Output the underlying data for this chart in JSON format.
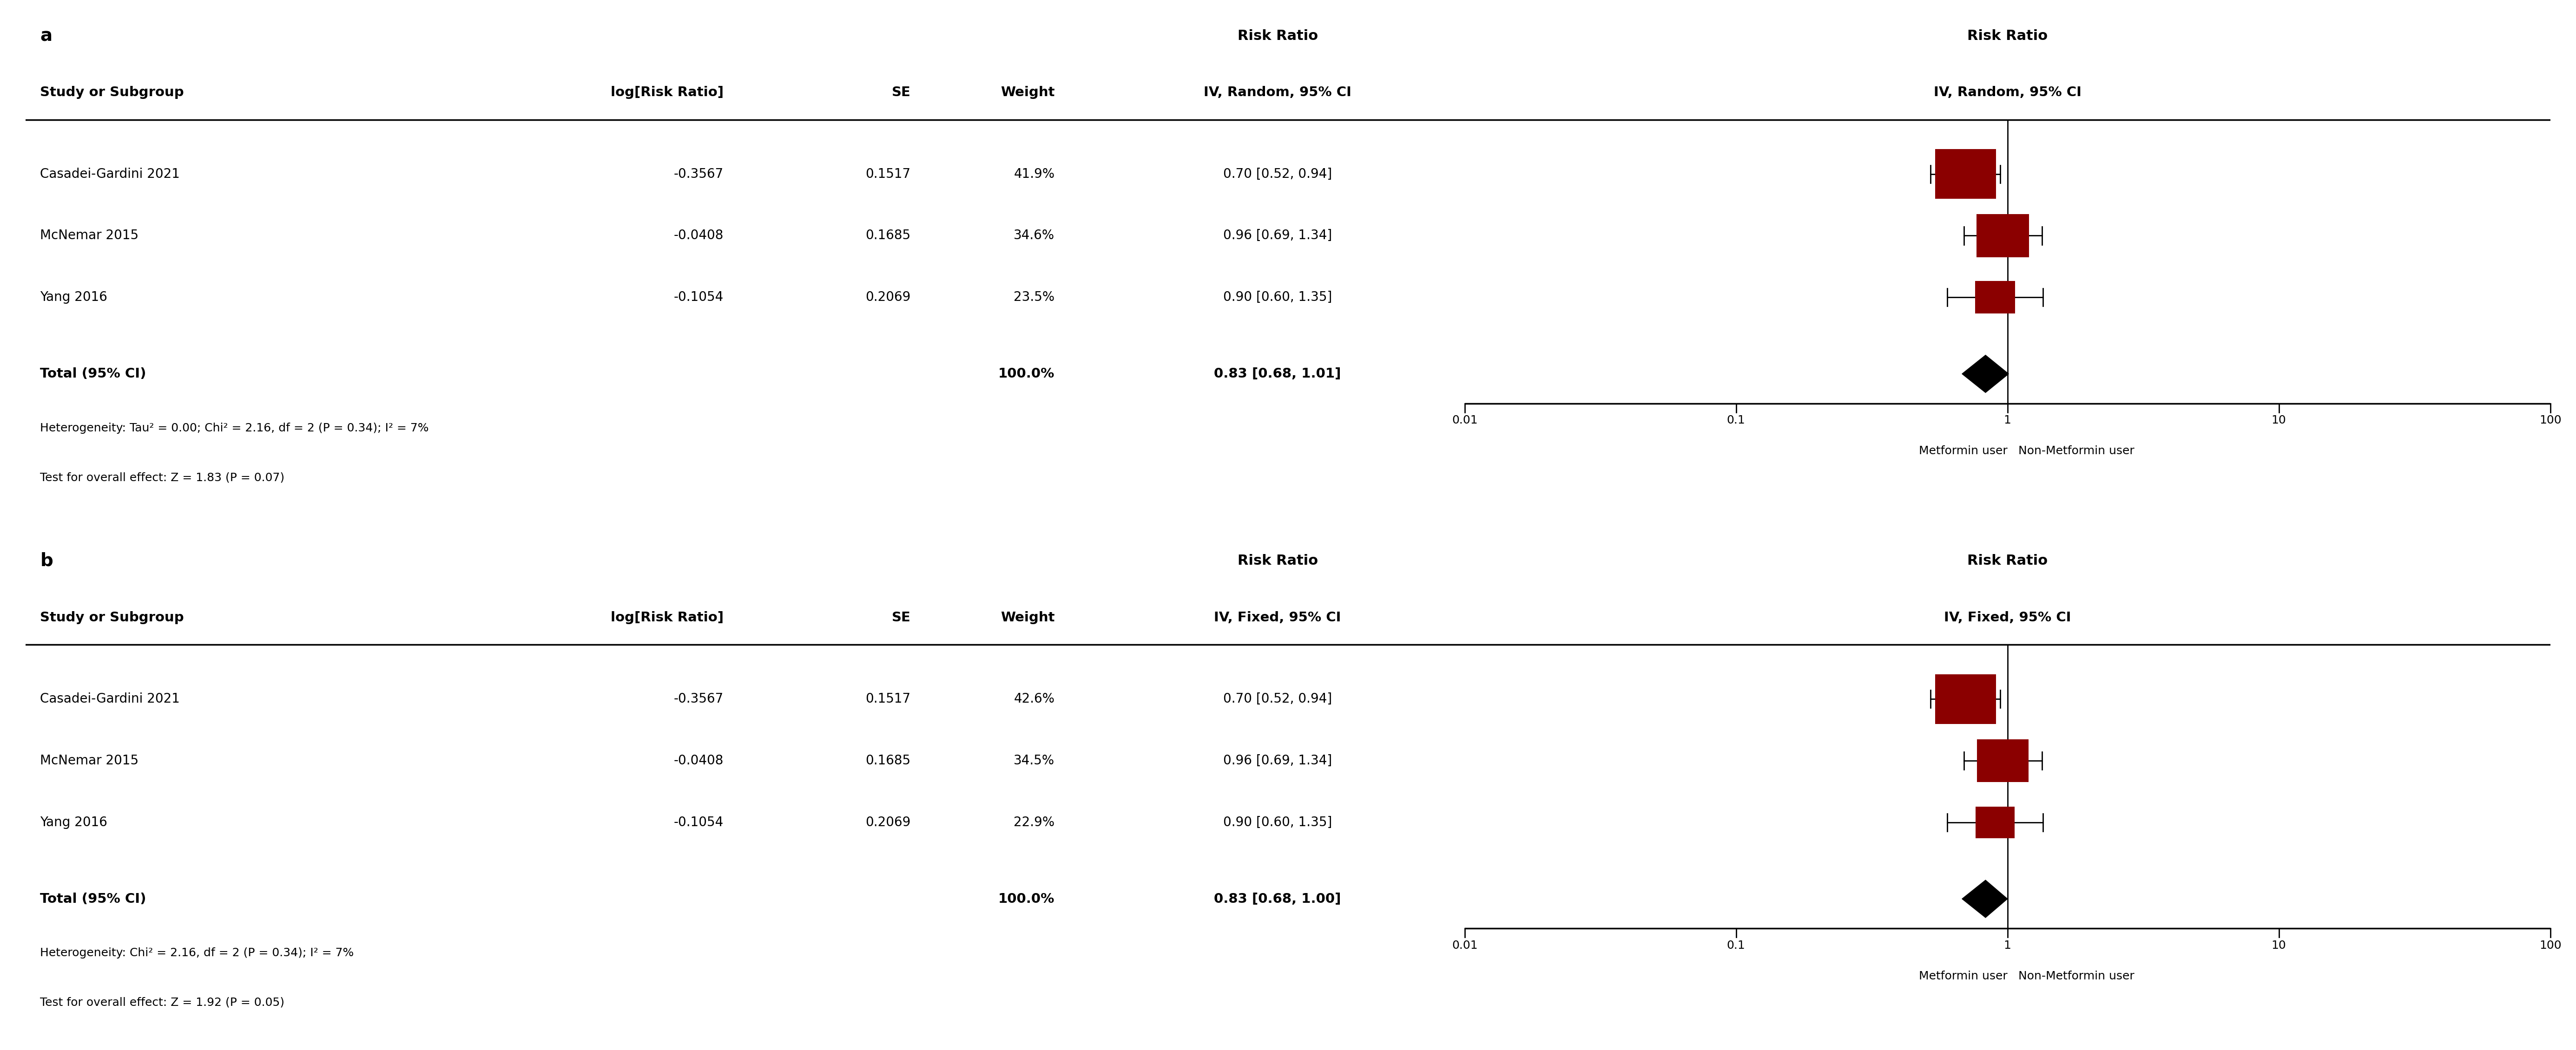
{
  "panel_a": {
    "label": "a",
    "studies": [
      {
        "name": "Casadei-Gardini 2021",
        "log_rr": -0.3567,
        "se": 0.1517,
        "weight": "41.9%",
        "rr": 0.7,
        "ci_low": 0.52,
        "ci_high": 0.94
      },
      {
        "name": "McNemar 2015",
        "log_rr": -0.0408,
        "se": 0.1685,
        "weight": "34.6%",
        "rr": 0.96,
        "ci_low": 0.69,
        "ci_high": 1.34
      },
      {
        "name": "Yang 2016",
        "log_rr": -0.1054,
        "se": 0.2069,
        "weight": "23.5%",
        "rr": 0.9,
        "ci_low": 0.6,
        "ci_high": 1.35
      }
    ],
    "total_weight": "100.0%",
    "total_rr": 0.83,
    "total_ci_low": 0.68,
    "total_ci_high": 1.01,
    "total_text": "0.83 [0.68, 1.01]",
    "heterogeneity": "Heterogeneity: Tau² = 0.00; Chi² = 2.16, df = 2 (P = 0.34); I² = 7%",
    "overall_effect": "Test for overall effect: Z = 1.83 (P = 0.07)",
    "rr_header": "Risk Ratio",
    "rr_subheader": "IV, Random, 95% CI"
  },
  "panel_b": {
    "label": "b",
    "studies": [
      {
        "name": "Casadei-Gardini 2021",
        "log_rr": -0.3567,
        "se": 0.1517,
        "weight": "42.6%",
        "rr": 0.7,
        "ci_low": 0.52,
        "ci_high": 0.94
      },
      {
        "name": "McNemar 2015",
        "log_rr": -0.0408,
        "se": 0.1685,
        "weight": "34.5%",
        "rr": 0.96,
        "ci_low": 0.69,
        "ci_high": 1.34
      },
      {
        "name": "Yang 2016",
        "log_rr": -0.1054,
        "se": 0.2069,
        "weight": "22.9%",
        "rr": 0.9,
        "ci_low": 0.6,
        "ci_high": 1.35
      }
    ],
    "total_weight": "100.0%",
    "total_rr": 0.83,
    "total_ci_low": 0.68,
    "total_ci_high": 1.0,
    "total_text": "0.83 [0.68, 1.00]",
    "heterogeneity": "Heterogeneity: Chi² = 2.16, df = 2 (P = 0.34); I² = 7%",
    "overall_effect": "Test for overall effect: Z = 1.92 (P = 0.05)",
    "rr_header": "Risk Ratio",
    "rr_subheader": "IV, Fixed, 95% CI"
  },
  "x_label_left": "Metformin user",
  "x_label_right": "Non-Metformin user",
  "square_color": "#8B0000",
  "diamond_color": "#000000",
  "ci_color": "#000000",
  "text_color": "#000000",
  "bg_color": "#ffffff"
}
